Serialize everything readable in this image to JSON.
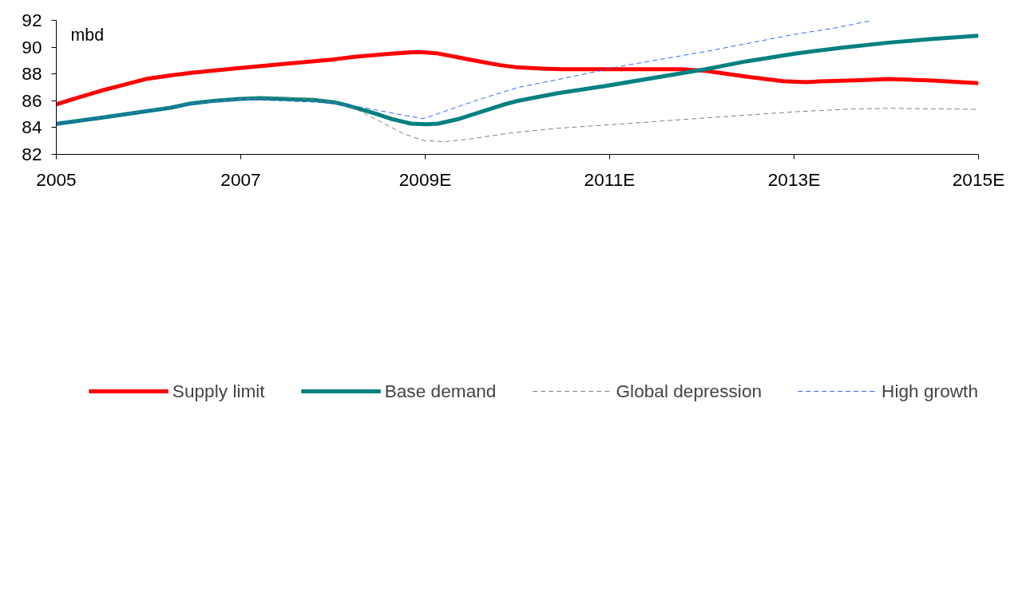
{
  "chart_data": {
    "type": "line",
    "ylabel": "mbd",
    "xlim": [
      2005,
      2015
    ],
    "ylim": [
      82,
      92
    ],
    "xticks": [
      2005,
      2007,
      {
        "value": 2009,
        "label": "2009E"
      },
      {
        "value": 2011,
        "label": "2011E"
      },
      {
        "value": 2013,
        "label": "2013E"
      },
      {
        "value": 2015,
        "label": "2015E"
      }
    ],
    "yticks": [
      82,
      84,
      86,
      88,
      90,
      92
    ],
    "grid": false,
    "legend": "bottom",
    "marker": "none",
    "series": [
      {
        "name": "Supply limit",
        "color": "#ff0000",
        "line_style": "solid",
        "x": [
          2005,
          2005.22,
          2005.49,
          2005.73,
          2005.97,
          2006.24,
          2006.5,
          2006.77,
          2006.99,
          2007.48,
          2008.01,
          2008.23,
          2008.58,
          2008.85,
          2008.98,
          2009.12,
          2009.34,
          2009.6,
          2009.81,
          2009.98,
          2010.27,
          2010.49,
          2011.15,
          2011.77,
          2012.04,
          2012.48,
          2012.88,
          2013.14,
          2013.27,
          2013.72,
          2014.03,
          2014.51,
          2015
        ],
        "values": [
          85.73,
          86.21,
          86.76,
          87.19,
          87.62,
          87.89,
          88.11,
          88.29,
          88.44,
          88.75,
          89.09,
          89.28,
          89.48,
          89.62,
          89.62,
          89.55,
          89.26,
          88.92,
          88.66,
          88.51,
          88.4,
          88.35,
          88.35,
          88.35,
          88.23,
          87.8,
          87.46,
          87.38,
          87.45,
          87.53,
          87.62,
          87.5,
          87.31
        ]
      },
      {
        "name": "Base demand",
        "color": "#008080",
        "line_style": "solid",
        "x": [
          2005,
          2005.49,
          2005.97,
          2006.24,
          2006.46,
          2006.73,
          2006.99,
          2007.21,
          2007.48,
          2007.79,
          2008.01,
          2008.14,
          2008.32,
          2008.5,
          2008.63,
          2008.85,
          2009.01,
          2009.14,
          2009.37,
          2009.52,
          2009.73,
          2009.87,
          2010,
          2010.44,
          2010.97,
          2012.04,
          2012.48,
          2013.01,
          2013.54,
          2014.03,
          2014.51,
          2015
        ],
        "values": [
          84.28,
          84.74,
          85.22,
          85.48,
          85.8,
          86.01,
          86.14,
          86.2,
          86.14,
          86.06,
          85.89,
          85.68,
          85.32,
          84.96,
          84.65,
          84.29,
          84.24,
          84.29,
          84.65,
          84.99,
          85.44,
          85.75,
          85.99,
          86.57,
          87.12,
          88.35,
          88.94,
          89.52,
          89.98,
          90.34,
          90.62,
          90.85
        ]
      },
      {
        "name": "Global depression",
        "color": "#808080",
        "line_style": "dashed",
        "x": [
          2005,
          2005.97,
          2006.46,
          2006.99,
          2007.48,
          2007.79,
          2008.01,
          2008.23,
          2008.5,
          2008.76,
          2008.98,
          2009.2,
          2009.47,
          2009.91,
          2010.44,
          2011.15,
          2012.04,
          2013.01,
          2013.63,
          2014.03,
          2015
        ],
        "values": [
          84.28,
          85.22,
          85.78,
          86.14,
          86.26,
          86.09,
          85.89,
          85.44,
          84.5,
          83.56,
          83.04,
          82.94,
          83.13,
          83.59,
          83.95,
          84.28,
          84.72,
          85.18,
          85.39,
          85.44,
          85.36
        ]
      },
      {
        "name": "High growth",
        "color": "#3366ff",
        "line_style": "dashed",
        "x": [
          2005,
          2005.97,
          2006.46,
          2006.99,
          2007.48,
          2007.96,
          2008.23,
          2008.5,
          2008.76,
          2008.98,
          2009.2,
          2009.56,
          2010,
          2010.44,
          2011.15,
          2012.04,
          2013.01,
          2013.45,
          2013.85
        ],
        "values": [
          84.28,
          85.22,
          85.76,
          86.09,
          85.99,
          85.84,
          85.61,
          85.27,
          84.93,
          84.67,
          85.18,
          86.04,
          86.98,
          87.58,
          88.61,
          89.67,
          90.96,
          91.44,
          92.0
        ]
      }
    ]
  }
}
